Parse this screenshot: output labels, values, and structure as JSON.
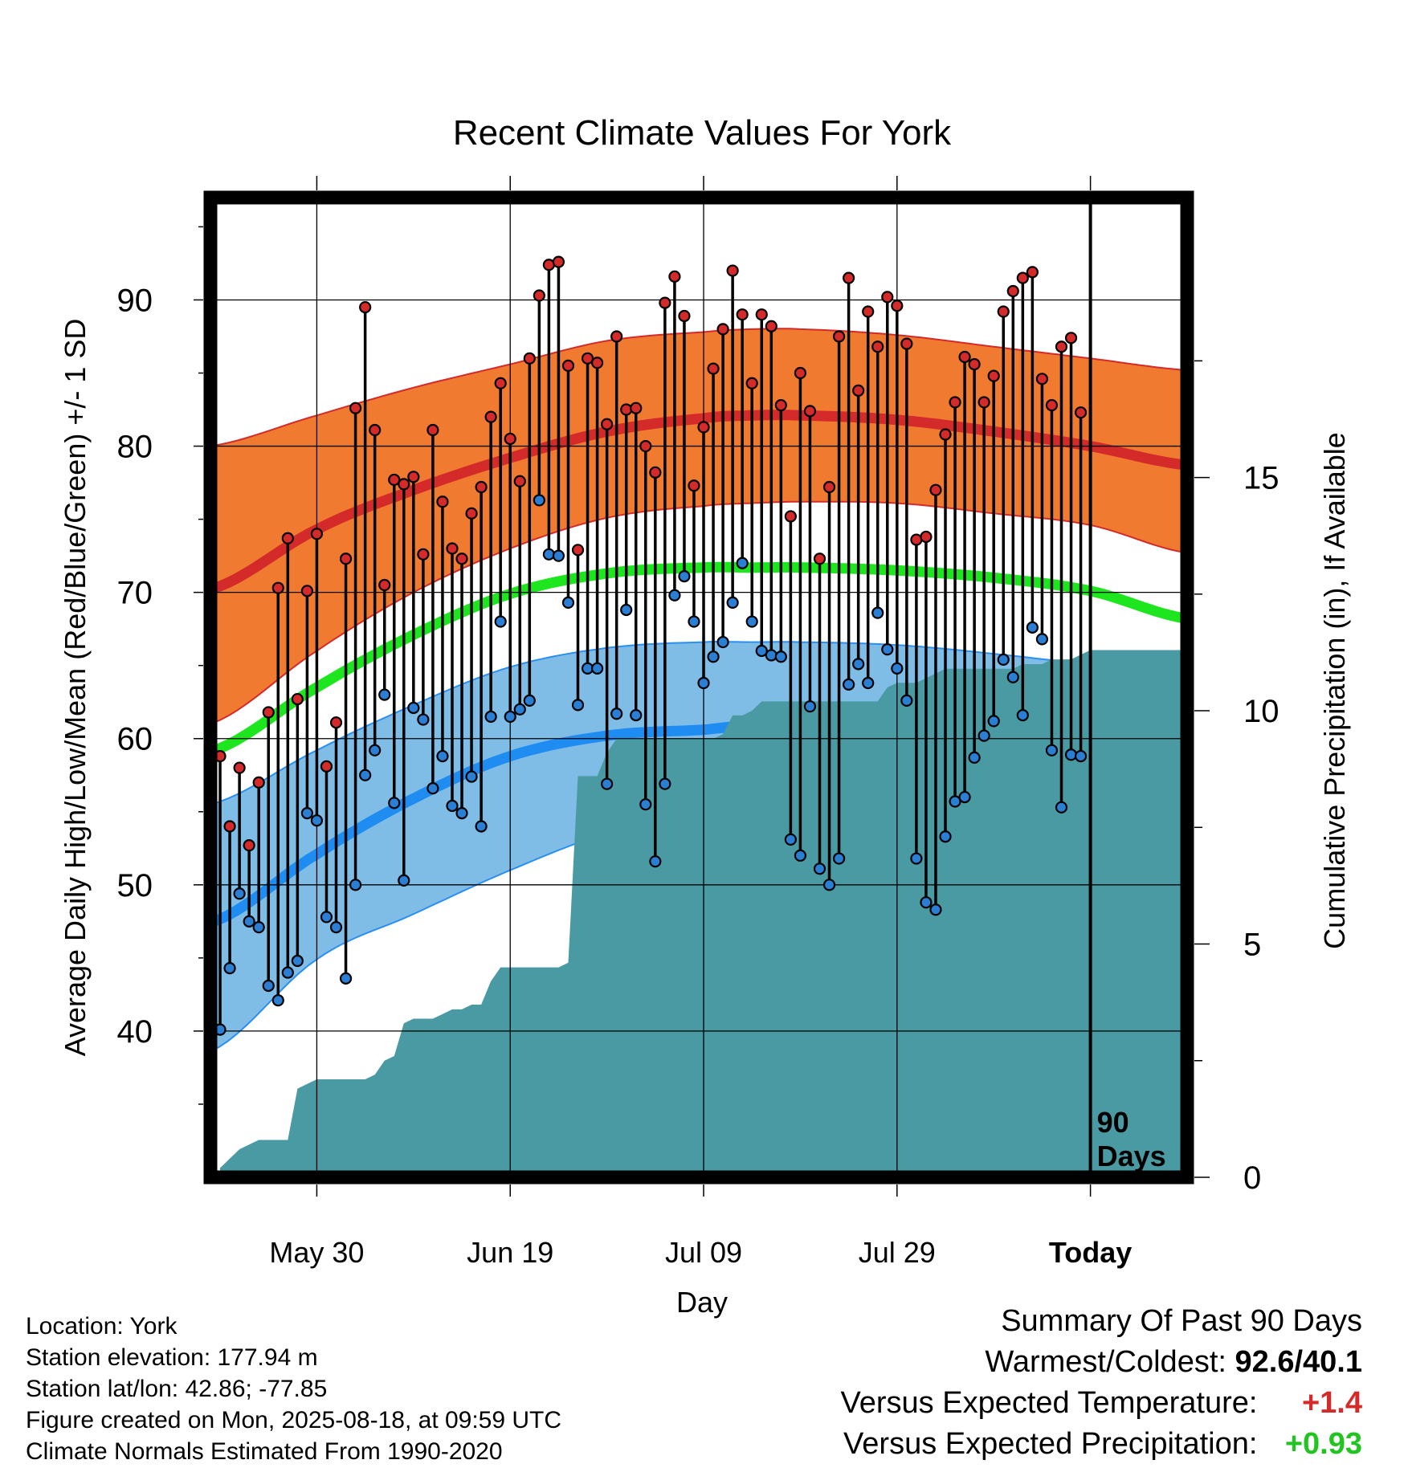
{
  "chart_data": {
    "type": "line",
    "title": "Recent Climate Values For York",
    "xlabel": "Day",
    "ylabel": "Average Daily High/Low/Mean (Red/Blue/Green) +/- 1 SD",
    "y2label": "Cumulative Precipitation (in), If Available",
    "xlim": [
      -1,
      100
    ],
    "ylim": [
      30,
      97
    ],
    "y2lim": [
      0,
      21
    ],
    "xticks": [
      {
        "day": 10,
        "label": "May 30"
      },
      {
        "day": 30,
        "label": "Jun 19"
      },
      {
        "day": 50,
        "label": "Jul 09"
      },
      {
        "day": 70,
        "label": "Jul 29"
      },
      {
        "day": 90,
        "label": "Today"
      }
    ],
    "yticks": [
      40,
      50,
      60,
      70,
      80,
      90
    ],
    "y2ticks": [
      0,
      5,
      10,
      15
    ],
    "today_marker": {
      "day": 90,
      "label_line1": "90",
      "label_line2": "Days"
    },
    "grid": true,
    "normals": {
      "day": [
        -1,
        10,
        20,
        30,
        40,
        50,
        55,
        60,
        70,
        80,
        90,
        100
      ],
      "high_mean": [
        70.2,
        74.3,
        77.0,
        79.2,
        81.0,
        81.9,
        82.1,
        82.1,
        81.8,
        81.0,
        80.0,
        78.7
      ],
      "high_upper": [
        80.0,
        82.1,
        84.0,
        85.6,
        87.2,
        87.8,
        88.0,
        88.0,
        87.6,
        86.8,
        86.0,
        85.2
      ],
      "high_lower": [
        61.0,
        66.0,
        70.0,
        73.0,
        75.1,
        75.9,
        76.1,
        76.2,
        76.1,
        75.4,
        74.6,
        72.7
      ],
      "mean": [
        59.1,
        63.5,
        67.1,
        69.9,
        71.3,
        71.7,
        71.7,
        71.7,
        71.5,
        71.0,
        70.1,
        68.2
      ],
      "low_mean": [
        47.4,
        52.1,
        55.9,
        58.8,
        60.2,
        60.6,
        60.9,
        60.8,
        60.6,
        60.1,
        59.3,
        57.2
      ],
      "low_upper": [
        55.5,
        59.2,
        62.3,
        64.9,
        66.2,
        66.6,
        66.6,
        66.6,
        66.4,
        65.8,
        65.0,
        63.8
      ],
      "low_lower": [
        38.6,
        44.9,
        48.0,
        51.0,
        53.5,
        54.6,
        54.8,
        55.0,
        55.1,
        54.6,
        53.0,
        51.1
      ]
    },
    "series": [
      {
        "name": "High",
        "color": "#d42a2a",
        "values": [
          58.8,
          54.0,
          58.0,
          52.7,
          57.0,
          61.8,
          70.3,
          73.7,
          62.7,
          70.1,
          74.0,
          58.1,
          61.1,
          72.3,
          82.6,
          89.5,
          81.1,
          70.5,
          77.7,
          77.4,
          77.9,
          72.6,
          81.1,
          76.2,
          73.0,
          72.3,
          75.4,
          77.2,
          82.0,
          84.3,
          80.5,
          77.6,
          86.0,
          90.3,
          92.4,
          92.6,
          85.5,
          72.9,
          86.0,
          85.7,
          81.5,
          87.5,
          82.5,
          82.6,
          80.0,
          78.2,
          89.8,
          91.6,
          88.9,
          77.3,
          81.3,
          85.3,
          88.0,
          92.0,
          89.0,
          84.3,
          89.0,
          88.2,
          82.8,
          75.2,
          85.0,
          82.4,
          72.3,
          77.2,
          87.5,
          91.5,
          83.8,
          89.2,
          86.8,
          90.2,
          89.6,
          87.0,
          73.6,
          73.8,
          77.0,
          80.8,
          83.0,
          86.1,
          85.6,
          83.0,
          84.8,
          89.2,
          90.6,
          91.5,
          91.9,
          84.6,
          82.8,
          86.8,
          87.4,
          82.3
        ]
      },
      {
        "name": "Low",
        "color": "#2a7fd4",
        "values": [
          40.1,
          44.3,
          49.4,
          47.5,
          47.1,
          43.1,
          42.1,
          44.0,
          44.8,
          54.9,
          54.4,
          47.8,
          47.1,
          43.6,
          50.0,
          57.5,
          59.2,
          63.0,
          55.6,
          50.3,
          62.1,
          61.3,
          56.6,
          58.8,
          55.4,
          54.9,
          57.4,
          54.0,
          61.5,
          68.0,
          61.5,
          62.0,
          62.6,
          76.3,
          72.6,
          72.5,
          69.3,
          62.3,
          64.8,
          64.8,
          56.9,
          61.7,
          68.8,
          61.6,
          55.5,
          51.6,
          56.9,
          69.8,
          71.1,
          68.0,
          63.8,
          65.6,
          66.6,
          69.3,
          72.0,
          68.0,
          66.0,
          65.7,
          65.6,
          53.1,
          52.0,
          62.2,
          51.1,
          50.0,
          51.8,
          63.7,
          65.1,
          63.8,
          68.6,
          66.1,
          64.8,
          62.6,
          51.8,
          48.8,
          48.3,
          53.3,
          55.7,
          56.0,
          58.7,
          60.2,
          61.2,
          65.4,
          64.2,
          61.6,
          67.6,
          66.8,
          59.2,
          55.3,
          58.9,
          58.8
        ]
      }
    ],
    "precipitation": {
      "name": "Cumulative Precipitation",
      "color": "#4a9aa3",
      "day": [
        0,
        1,
        2,
        3,
        4,
        5,
        6,
        7,
        8,
        9,
        10,
        11,
        12,
        13,
        14,
        15,
        16,
        17,
        18,
        19,
        20,
        21,
        22,
        23,
        24,
        25,
        26,
        27,
        28,
        29,
        30,
        31,
        32,
        33,
        34,
        35,
        36,
        37,
        38,
        39,
        40,
        41,
        42,
        43,
        44,
        45,
        46,
        47,
        48,
        49,
        50,
        51,
        52,
        53,
        54,
        55,
        56,
        57,
        58,
        59,
        60,
        61,
        62,
        63,
        64,
        65,
        66,
        67,
        68,
        69,
        70,
        71,
        72,
        73,
        74,
        75,
        76,
        77,
        78,
        79,
        80,
        81,
        82,
        83,
        84,
        85,
        86,
        87,
        88,
        89,
        90
      ],
      "values": [
        0.2,
        0.4,
        0.6,
        0.7,
        0.8,
        0.8,
        0.8,
        0.8,
        1.9,
        2.0,
        2.1,
        2.1,
        2.1,
        2.1,
        2.1,
        2.1,
        2.2,
        2.5,
        2.6,
        3.3,
        3.4,
        3.4,
        3.4,
        3.5,
        3.6,
        3.6,
        3.7,
        3.7,
        4.2,
        4.5,
        4.5,
        4.5,
        4.5,
        4.5,
        4.5,
        4.5,
        4.6,
        8.6,
        8.6,
        8.6,
        9.1,
        9.4,
        9.4,
        9.4,
        9.4,
        9.4,
        9.4,
        9.4,
        9.4,
        9.4,
        9.4,
        9.4,
        9.5,
        9.9,
        9.9,
        10.0,
        10.2,
        10.2,
        10.2,
        10.2,
        10.2,
        10.2,
        10.2,
        10.2,
        10.2,
        10.2,
        10.2,
        10.2,
        10.2,
        10.5,
        10.6,
        10.6,
        10.6,
        10.7,
        10.8,
        10.9,
        10.9,
        10.9,
        10.9,
        10.9,
        10.9,
        10.9,
        10.9,
        11.0,
        11.0,
        11.0,
        11.1,
        11.1,
        11.1,
        11.2,
        11.3
      ]
    }
  },
  "footer": {
    "location": "Location: York",
    "elevation": "Station elevation: 177.94 m",
    "latlon": "Station lat/lon: 42.86; -77.85",
    "created": "Figure created on Mon, 2025-08-18, at 09:59 UTC",
    "normals": "Climate Normals Estimated From 1990-2020"
  },
  "summary": {
    "title": "Summary Of Past 90 Days",
    "warm_cold_label": "Warmest/Coldest:",
    "warm_cold_value": "92.6/40.1",
    "temp_label": "Versus Expected Temperature:",
    "temp_value": "+1.4",
    "temp_color": "#d42a2a",
    "precip_label": "Versus Expected Precipitation:",
    "precip_value": "+0.93",
    "precip_color": "#22c422"
  }
}
